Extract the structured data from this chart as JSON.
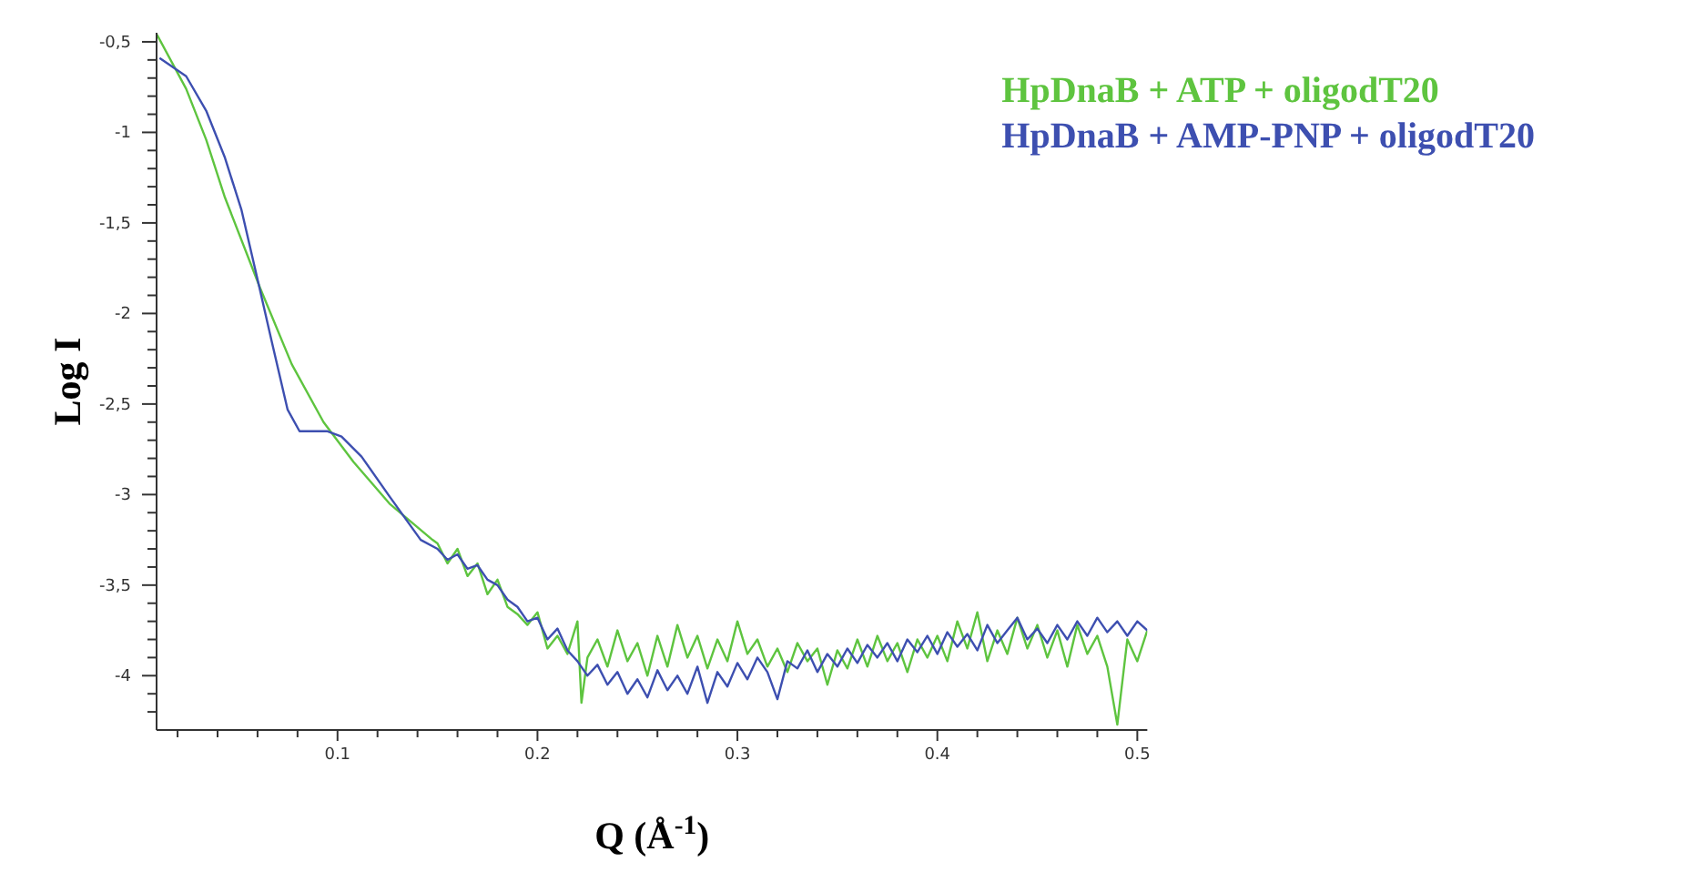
{
  "chart_data": {
    "type": "line",
    "xlabel": "Q (Å$^{-1}$)",
    "ylabel": "Log I",
    "legend": "top right",
    "marker": "none",
    "line_style": "solid",
    "grid": false,
    "xlim": [
      0.0095,
      0.505
    ],
    "ylim": [
      -4.3,
      -0.45
    ],
    "xticks": [
      {
        "value": 0.02,
        "label": null
      },
      {
        "value": 0.04,
        "label": null
      },
      {
        "value": 0.06,
        "label": null
      },
      {
        "value": 0.08,
        "label": null
      },
      0.1,
      {
        "value": 0.12,
        "label": null
      },
      {
        "value": 0.14,
        "label": null
      },
      {
        "value": 0.16,
        "label": null
      },
      {
        "value": 0.18,
        "label": null
      },
      0.2,
      {
        "value": 0.22,
        "label": null
      },
      {
        "value": 0.24,
        "label": null
      },
      {
        "value": 0.26,
        "label": null
      },
      {
        "value": 0.28,
        "label": null
      },
      0.3,
      {
        "value": 0.32,
        "label": null
      },
      {
        "value": 0.34,
        "label": null
      },
      {
        "value": 0.36,
        "label": null
      },
      {
        "value": 0.38,
        "label": null
      },
      0.4,
      {
        "value": 0.42,
        "label": null
      },
      {
        "value": 0.44,
        "label": null
      },
      {
        "value": 0.46,
        "label": null
      },
      {
        "value": 0.48,
        "label": null
      },
      0.5
    ],
    "yticks": [
      {
        "value": -0.5,
        "label": "-0,5"
      },
      {
        "value": -0.6,
        "label": null
      },
      {
        "value": -0.7,
        "label": null
      },
      {
        "value": -0.8,
        "label": null
      },
      {
        "value": -0.9,
        "label": null
      },
      -1,
      {
        "value": -1.1,
        "label": null
      },
      {
        "value": -1.2,
        "label": null
      },
      {
        "value": -1.3,
        "label": null
      },
      {
        "value": -1.4,
        "label": null
      },
      {
        "value": -1.5,
        "label": "-1,5"
      },
      {
        "value": -1.6,
        "label": null
      },
      {
        "value": -1.7,
        "label": null
      },
      {
        "value": -1.8,
        "label": null
      },
      {
        "value": -1.9,
        "label": null
      },
      -2,
      {
        "value": -2.1,
        "label": null
      },
      {
        "value": -2.2,
        "label": null
      },
      {
        "value": -2.3,
        "label": null
      },
      {
        "value": -2.4,
        "label": null
      },
      {
        "value": -2.5,
        "label": "-2,5"
      },
      {
        "value": -2.6,
        "label": null
      },
      {
        "value": -2.7,
        "label": null
      },
      {
        "value": -2.8,
        "label": null
      },
      {
        "value": -2.9,
        "label": null
      },
      -3,
      {
        "value": -3.1,
        "label": null
      },
      {
        "value": -3.2,
        "label": null
      },
      {
        "value": -3.3,
        "label": null
      },
      {
        "value": -3.4,
        "label": null
      },
      {
        "value": -3.5,
        "label": "-3,5"
      },
      {
        "value": -3.6,
        "label": null
      },
      {
        "value": -3.7,
        "label": null
      },
      {
        "value": -3.8,
        "label": null
      },
      {
        "value": -3.9,
        "label": null
      },
      -4,
      {
        "value": -4.1,
        "label": null
      },
      {
        "value": -4.2,
        "label": null
      }
    ],
    "series": [
      {
        "name": "HpDnaB + ATP + oligodT20",
        "color": "#5ec43f",
        "x": [
          0.0097,
          0.0243,
          0.0343,
          0.0437,
          0.0613,
          0.0771,
          0.093,
          0.108,
          0.126,
          0.1475,
          0.15,
          0.155,
          0.16,
          0.165,
          0.17,
          0.175,
          0.18,
          0.185,
          0.19,
          0.195,
          0.2,
          0.205,
          0.21,
          0.215,
          0.22,
          0.222,
          0.225,
          0.23,
          0.235,
          0.24,
          0.245,
          0.25,
          0.255,
          0.26,
          0.265,
          0.27,
          0.275,
          0.28,
          0.285,
          0.29,
          0.295,
          0.3,
          0.305,
          0.31,
          0.315,
          0.32,
          0.325,
          0.33,
          0.335,
          0.34,
          0.345,
          0.35,
          0.355,
          0.36,
          0.365,
          0.37,
          0.375,
          0.38,
          0.385,
          0.39,
          0.395,
          0.4,
          0.405,
          0.41,
          0.415,
          0.42,
          0.425,
          0.43,
          0.435,
          0.44,
          0.445,
          0.45,
          0.455,
          0.46,
          0.465,
          0.47,
          0.475,
          0.48,
          0.485,
          0.49,
          0.495,
          0.5,
          0.505
        ],
        "values": [
          -0.46,
          -0.76,
          -1.04,
          -1.36,
          -1.86,
          -2.28,
          -2.6,
          -2.82,
          -3.05,
          -3.25,
          -3.27,
          -3.38,
          -3.3,
          -3.45,
          -3.38,
          -3.55,
          -3.47,
          -3.62,
          -3.66,
          -3.72,
          -3.65,
          -3.85,
          -3.78,
          -3.88,
          -3.7,
          -4.15,
          -3.9,
          -3.8,
          -3.95,
          -3.75,
          -3.92,
          -3.82,
          -4.0,
          -3.78,
          -3.95,
          -3.72,
          -3.9,
          -3.78,
          -3.96,
          -3.8,
          -3.92,
          -3.7,
          -3.88,
          -3.8,
          -3.95,
          -3.85,
          -3.98,
          -3.82,
          -3.92,
          -3.85,
          -4.05,
          -3.86,
          -3.96,
          -3.8,
          -3.95,
          -3.78,
          -3.92,
          -3.82,
          -3.98,
          -3.8,
          -3.9,
          -3.78,
          -3.92,
          -3.7,
          -3.85,
          -3.65,
          -3.92,
          -3.75,
          -3.88,
          -3.68,
          -3.85,
          -3.72,
          -3.9,
          -3.75,
          -3.95,
          -3.72,
          -3.88,
          -3.78,
          -3.95,
          -4.27,
          -3.8,
          -3.92,
          -3.75
        ]
      },
      {
        "name": "HpDnaB + AMP-PNP + oligodT20",
        "color": "#3d4fb0",
        "x": [
          0.011,
          0.0243,
          0.0343,
          0.0437,
          0.052,
          0.061,
          0.067,
          0.075,
          0.081,
          0.0947,
          0.102,
          0.112,
          0.126,
          0.1416,
          0.15,
          0.155,
          0.16,
          0.165,
          0.17,
          0.175,
          0.18,
          0.185,
          0.19,
          0.195,
          0.2,
          0.205,
          0.21,
          0.215,
          0.22,
          0.225,
          0.23,
          0.235,
          0.24,
          0.245,
          0.25,
          0.255,
          0.26,
          0.265,
          0.27,
          0.275,
          0.28,
          0.285,
          0.29,
          0.295,
          0.3,
          0.305,
          0.31,
          0.315,
          0.32,
          0.325,
          0.33,
          0.335,
          0.34,
          0.345,
          0.35,
          0.355,
          0.36,
          0.365,
          0.37,
          0.375,
          0.38,
          0.385,
          0.39,
          0.395,
          0.4,
          0.405,
          0.41,
          0.415,
          0.42,
          0.425,
          0.43,
          0.435,
          0.44,
          0.445,
          0.45,
          0.455,
          0.46,
          0.465,
          0.47,
          0.475,
          0.48,
          0.485,
          0.49,
          0.495,
          0.5,
          0.505
        ],
        "values": [
          -0.59,
          -0.69,
          -0.88,
          -1.14,
          -1.43,
          -1.86,
          -2.15,
          -2.53,
          -2.65,
          -2.65,
          -2.68,
          -2.79,
          -3.01,
          -3.25,
          -3.3,
          -3.36,
          -3.33,
          -3.41,
          -3.39,
          -3.47,
          -3.5,
          -3.58,
          -3.62,
          -3.7,
          -3.68,
          -3.8,
          -3.74,
          -3.86,
          -3.92,
          -4.0,
          -3.94,
          -4.05,
          -3.98,
          -4.1,
          -4.02,
          -4.12,
          -3.97,
          -4.08,
          -4.0,
          -4.1,
          -3.95,
          -4.15,
          -3.98,
          -4.06,
          -3.93,
          -4.02,
          -3.9,
          -3.98,
          -4.13,
          -3.92,
          -3.96,
          -3.86,
          -3.98,
          -3.88,
          -3.95,
          -3.85,
          -3.93,
          -3.83,
          -3.9,
          -3.82,
          -3.92,
          -3.8,
          -3.87,
          -3.78,
          -3.88,
          -3.76,
          -3.84,
          -3.77,
          -3.86,
          -3.72,
          -3.82,
          -3.75,
          -3.68,
          -3.8,
          -3.74,
          -3.82,
          -3.72,
          -3.8,
          -3.7,
          -3.78,
          -3.68,
          -3.76,
          -3.7,
          -3.78,
          -3.7,
          -3.75
        ]
      }
    ]
  }
}
